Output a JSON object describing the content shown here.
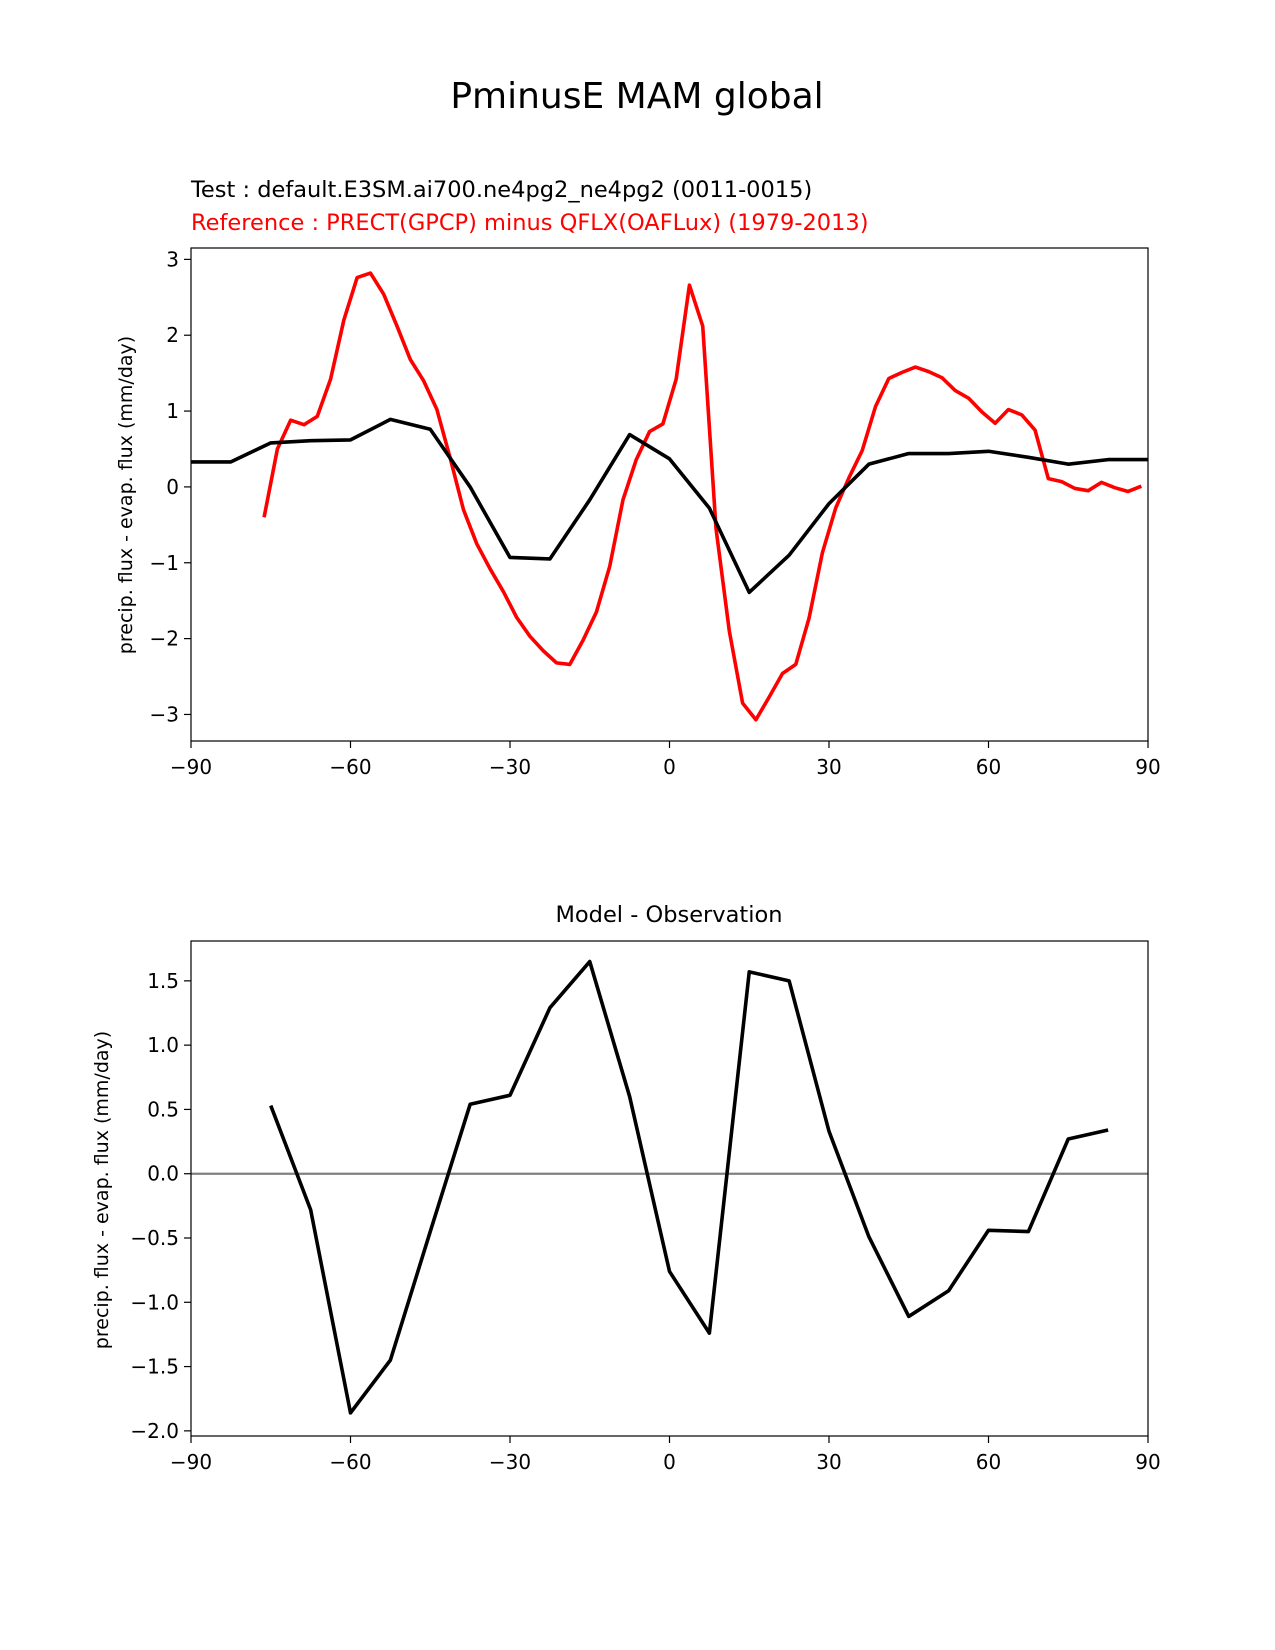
{
  "figure": {
    "suptitle": "PminusE MAM global"
  },
  "chart_data": [
    {
      "type": "line",
      "title_test": "Test : default.E3SM.ai700.ne4pg2_ne4pg2 (0011-0015)",
      "title_ref": "Reference : PRECT(GPCP) minus QFLX(OAFLux) (1979-2013)",
      "xlabel": "",
      "ylabel": "precip. flux - evap. flux (mm/day)",
      "xlim": [
        -90,
        90
      ],
      "ylim": [
        -3.35,
        3.15
      ],
      "xticks": [
        -90,
        -60,
        -30,
        0,
        30,
        60,
        90
      ],
      "xtick_labels": [
        "−90",
        "−60",
        "−30",
        "0",
        "30",
        "60",
        "90"
      ],
      "yticks": [
        -3,
        -2,
        -1,
        0,
        1,
        2,
        3
      ],
      "ytick_labels": [
        "−3",
        "−2",
        "−1",
        "0",
        "1",
        "2",
        "3"
      ],
      "grid": false,
      "series": [
        {
          "color": "#ff0000",
          "x": [
            -76.25,
            -73.75,
            -71.25,
            -68.75,
            -66.25,
            -63.75,
            -61.25,
            -58.75,
            -56.25,
            -53.75,
            -51.25,
            -48.75,
            -46.25,
            -43.75,
            -41.25,
            -38.75,
            -36.25,
            -33.75,
            -31.25,
            -28.75,
            -26.25,
            -23.75,
            -21.25,
            -18.75,
            -16.25,
            -13.75,
            -11.25,
            -8.75,
            -6.25,
            -3.75,
            -1.25,
            1.25,
            3.75,
            6.25,
            8.75,
            11.25,
            13.75,
            16.25,
            18.75,
            21.25,
            23.75,
            26.25,
            28.75,
            31.25,
            33.75,
            36.25,
            38.75,
            41.25,
            43.75,
            46.25,
            48.75,
            51.25,
            53.75,
            56.25,
            58.75,
            61.25,
            63.75,
            66.25,
            68.75,
            71.25,
            73.75,
            76.25,
            78.75,
            81.25,
            83.75,
            86.25,
            88.75
          ],
          "y": [
            -0.4,
            0.5,
            0.88,
            0.82,
            0.93,
            1.42,
            2.2,
            2.76,
            2.82,
            2.54,
            2.12,
            1.68,
            1.4,
            1.02,
            0.38,
            -0.3,
            -0.75,
            -1.08,
            -1.38,
            -1.72,
            -1.97,
            -2.16,
            -2.32,
            -2.34,
            -2.02,
            -1.65,
            -1.05,
            -0.17,
            0.36,
            0.73,
            0.83,
            1.42,
            2.66,
            2.12,
            -0.55,
            -1.9,
            -2.85,
            -3.07,
            -2.77,
            -2.46,
            -2.34,
            -1.73,
            -0.87,
            -0.28,
            0.12,
            0.48,
            1.06,
            1.43,
            1.51,
            1.58,
            1.52,
            1.44,
            1.27,
            1.17,
            0.99,
            0.84,
            1.02,
            0.95,
            0.75,
            0.11,
            0.07,
            -0.02,
            -0.05,
            0.06,
            -0.01,
            -0.06,
            0.01
          ]
        },
        {
          "color": "#000000",
          "x": [
            -90,
            -82.5,
            -75,
            -67.5,
            -60,
            -52.5,
            -45,
            -37.5,
            -30,
            -22.5,
            -15,
            -7.5,
            0,
            7.5,
            15,
            22.5,
            30,
            37.5,
            45,
            52.5,
            60,
            67.5,
            75,
            82.5,
            90
          ],
          "y": [
            0.33,
            0.33,
            0.58,
            0.61,
            0.62,
            0.89,
            0.76,
            0.0,
            -0.93,
            -0.95,
            -0.17,
            0.69,
            0.37,
            -0.28,
            -1.39,
            -0.9,
            -0.22,
            0.3,
            0.44,
            0.44,
            0.47,
            0.39,
            0.3,
            0.36,
            0.36
          ]
        }
      ]
    },
    {
      "type": "line",
      "title": "Model - Observation",
      "xlabel": "",
      "ylabel": "precip. flux - evap. flux (mm/day)",
      "xlim": [
        -90,
        90
      ],
      "ylim": [
        -2.04,
        1.81
      ],
      "xticks": [
        -90,
        -60,
        -30,
        0,
        30,
        60,
        90
      ],
      "xtick_labels": [
        "−90",
        "−60",
        "−30",
        "0",
        "30",
        "60",
        "90"
      ],
      "yticks": [
        -2.0,
        -1.5,
        -1.0,
        -0.5,
        0.0,
        0.5,
        1.0,
        1.5
      ],
      "ytick_labels": [
        "−2.0",
        "−1.5",
        "−1.0",
        "−0.5",
        "0.0",
        "0.5",
        "1.0",
        "1.5"
      ],
      "grid": false,
      "zero_line_color": "#808080",
      "series": [
        {
          "color": "#000000",
          "x": [
            -75,
            -67.5,
            -60,
            -52.5,
            -45,
            -37.5,
            -30,
            -22.5,
            -15,
            -7.5,
            0,
            7.5,
            15,
            22.5,
            30,
            37.5,
            45,
            52.5,
            60,
            67.5,
            75,
            82.5
          ],
          "y": [
            0.53,
            -0.28,
            -1.86,
            -1.45,
            -0.45,
            0.54,
            0.61,
            1.29,
            1.65,
            0.6,
            -0.76,
            -1.24,
            1.57,
            1.5,
            0.33,
            -0.49,
            -1.11,
            -0.91,
            -0.44,
            -0.45,
            0.27,
            0.34
          ]
        }
      ]
    }
  ]
}
